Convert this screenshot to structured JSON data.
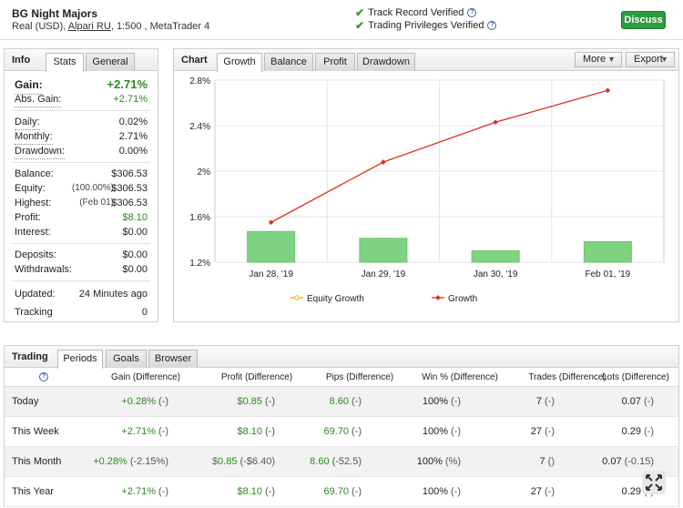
{
  "header": {
    "account_name": "BG Night Majors",
    "account_type": "Real (USD),",
    "broker": "Alpari RU",
    "account_meta": ", 1:500 , MetaTrader 4",
    "verified_track": "Track Record Verified",
    "verified_privileges": "Trading Privileges Verified",
    "discuss_label": "Discuss",
    "colors": {
      "accent": "#2e9b3e",
      "check": "#3a9a2a"
    }
  },
  "info": {
    "title": "Info",
    "tabs": [
      "Stats",
      "General"
    ],
    "gain_label": "Gain:",
    "gain_value": "+2.71%",
    "abs_gain_label": "Abs. Gain:",
    "abs_gain_value": "+2.71%",
    "daily_label": "Daily:",
    "daily_value": "0.02%",
    "monthly_label": "Monthly:",
    "monthly_value": "2.71%",
    "drawdown_label": "Drawdown:",
    "drawdown_value": "0.00%",
    "balance_label": "Balance:",
    "balance_value": "$306.53",
    "equity_label": "Equity:",
    "equity_note": "(100.00%)",
    "equity_value": "$306.53",
    "highest_label": "Highest:",
    "highest_note": "(Feb 01)",
    "highest_value": "$306.53",
    "profit_label": "Profit:",
    "profit_value": "$8.10",
    "interest_label": "Interest:",
    "interest_value": "$0.00",
    "deposits_label": "Deposits:",
    "deposits_value": "$0.00",
    "withdrawals_label": "Withdrawals:",
    "withdrawals_value": "$0.00",
    "updated_label": "Updated:",
    "updated_value": "24 Minutes ago",
    "tracking_label": "Tracking",
    "tracking_value": "0"
  },
  "chart": {
    "title": "Chart",
    "tabs": [
      "Growth",
      "Balance",
      "Profit",
      "Drawdown"
    ],
    "more_label": "More",
    "export_label": "Export",
    "colors": {
      "growth_line": "#e0301e",
      "bar": "#7fd27f",
      "equity_legend": "#f0b000"
    }
  },
  "chart_data": {
    "type": "line",
    "categories": [
      "Jan 28, '19",
      "Jan 29, '19",
      "Jan 30, '19",
      "Feb 01, '19"
    ],
    "yticks": [
      "2.8%",
      "2.4%",
      "2%",
      "1.6%",
      "1.2%"
    ],
    "ylim": [
      1.2,
      2.8
    ],
    "series": [
      {
        "name": "Equity Growth",
        "values": [
          null,
          null,
          null,
          null
        ]
      },
      {
        "name": "Growth",
        "values": [
          1.55,
          2.08,
          2.43,
          2.71
        ]
      }
    ],
    "bars": [
      1.47,
      1.41,
      1.3,
      1.38
    ],
    "legend": "bottom"
  },
  "trading": {
    "title": "Trading",
    "tabs": [
      "Periods",
      "Goals",
      "Browser"
    ],
    "headers": [
      "Gain (Difference)",
      "Profit (Difference)",
      "Pips (Difference)",
      "Win % (Difference)",
      "Trades (Difference)",
      "Lots (Difference)"
    ],
    "rows": [
      {
        "period": "Today",
        "gain": "+0.28%",
        "gain_diff": "(-)",
        "profit": "$0.85",
        "profit_diff": "(-)",
        "pips": "8.60",
        "pips_diff": "(-)",
        "win": "100%",
        "win_diff": "(-)",
        "trades": "7",
        "trades_diff": "(-)",
        "lots": "0.07",
        "lots_diff": "(-)"
      },
      {
        "period": "This Week",
        "gain": "+2.71%",
        "gain_diff": "(-)",
        "profit": "$8.10",
        "profit_diff": "(-)",
        "pips": "69.70",
        "pips_diff": "(-)",
        "win": "100%",
        "win_diff": "(-)",
        "trades": "27",
        "trades_diff": "(-)",
        "lots": "0.29",
        "lots_diff": "(-)"
      },
      {
        "period": "This Month",
        "gain": "+0.28%",
        "gain_diff": "(-2.15%)",
        "profit": "$0.85",
        "profit_diff": "(-$6.40)",
        "pips": "8.60",
        "pips_diff": "(-52.5)",
        "win": "100%",
        "win_diff": "(%)",
        "trades": "7",
        "trades_diff": "()",
        "lots": "0.07",
        "lots_diff": "(-0.15)"
      },
      {
        "period": "This Year",
        "gain": "+2.71%",
        "gain_diff": "(-)",
        "profit": "$8.10",
        "profit_diff": "(-)",
        "pips": "69.70",
        "pips_diff": "(-)",
        "win": "100%",
        "win_diff": "(-)",
        "trades": "27",
        "trades_diff": "(-)",
        "lots": "0.29",
        "lots_diff": "(-)"
      }
    ]
  }
}
